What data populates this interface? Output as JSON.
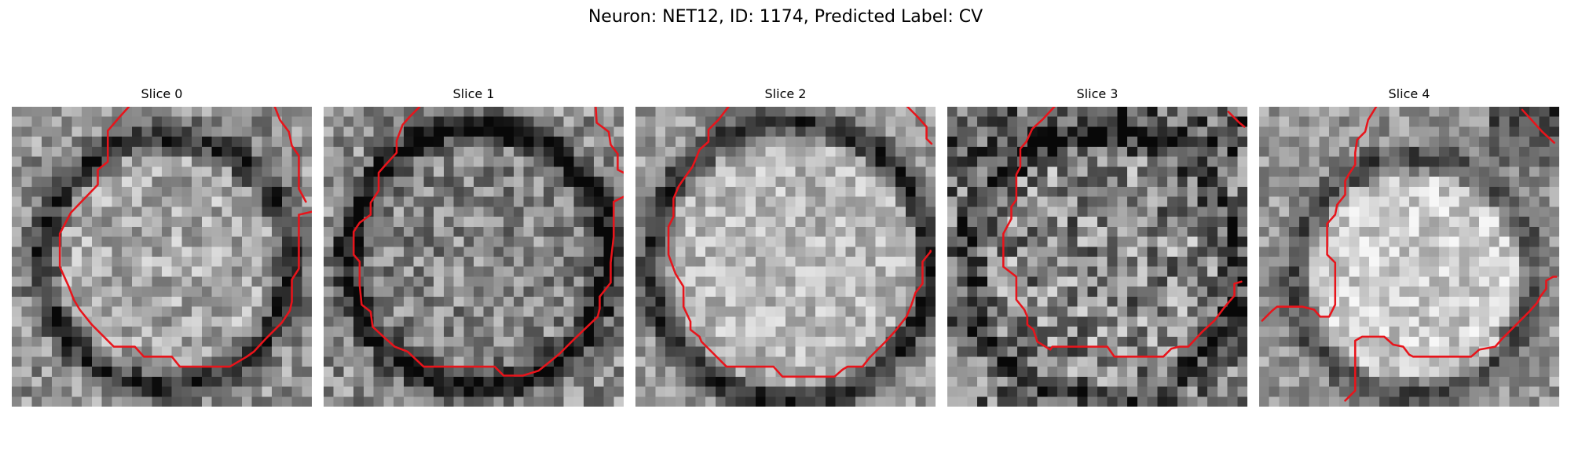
{
  "figure": {
    "title": "Neuron: NET12, ID: 1174, Predicted Label: CV"
  },
  "panels": [
    {
      "title": "Slice 0"
    },
    {
      "title": "Slice 1"
    },
    {
      "title": "Slice 2"
    },
    {
      "title": "Slice 3"
    },
    {
      "title": "Slice 4"
    }
  ],
  "colors": {
    "background": "#ffffff",
    "contour": "#e8141b",
    "image_colormap": "grayscale"
  },
  "image_grid": {
    "rows": 30,
    "cols": 30
  }
}
